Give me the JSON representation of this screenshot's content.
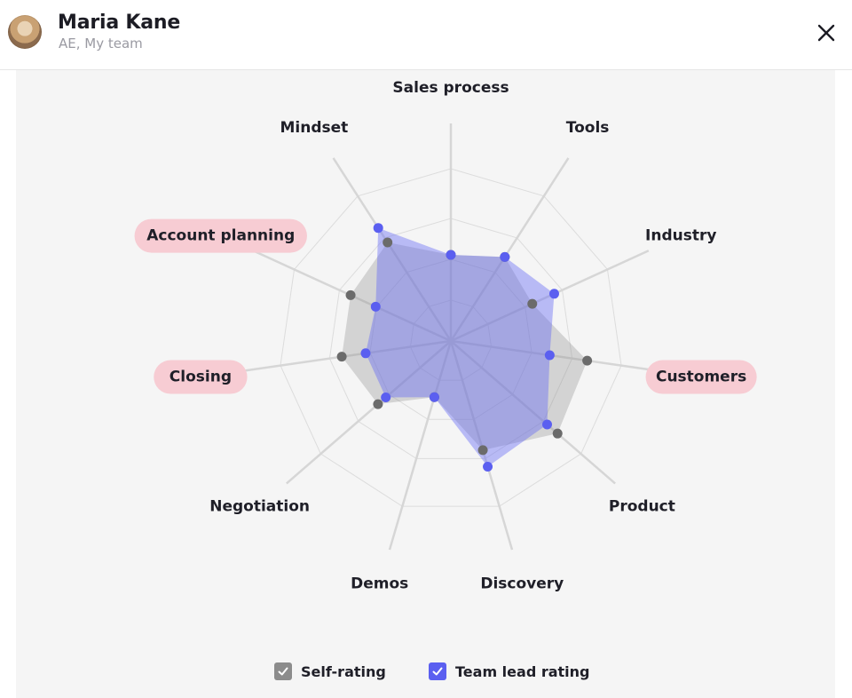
{
  "header": {
    "name": "Maria Kane",
    "role": "AE, My team"
  },
  "chart_data": {
    "type": "radar",
    "axes": [
      "Sales process",
      "Tools",
      "Industry",
      "Customers",
      "Product",
      "Discovery",
      "Demos",
      "Negotiation",
      "Closing",
      "Account planning",
      "Mindset"
    ],
    "highlighted_axes": [
      "Customers",
      "Closing",
      "Account planning"
    ],
    "range": [
      0,
      5
    ],
    "series": [
      {
        "name": "Self-rating",
        "values": [
          2.5,
          2.9,
          2.6,
          4.0,
          4.1,
          3.3,
          1.7,
          2.8,
          3.2,
          3.2,
          3.4
        ],
        "color": "#6b6b6b"
      },
      {
        "name": "Team lead rating",
        "values": [
          2.5,
          2.9,
          3.3,
          2.9,
          3.7,
          3.8,
          1.7,
          2.5,
          2.5,
          2.4,
          3.9
        ],
        "color": "#5b5ff0"
      }
    ],
    "highlight_color": "#f7ccd3"
  },
  "legend": {
    "items": [
      {
        "label": "Self-rating",
        "checked": true,
        "color": "#8c8c8c"
      },
      {
        "label": "Team lead rating",
        "checked": true,
        "color": "#5b5ff0"
      }
    ]
  }
}
